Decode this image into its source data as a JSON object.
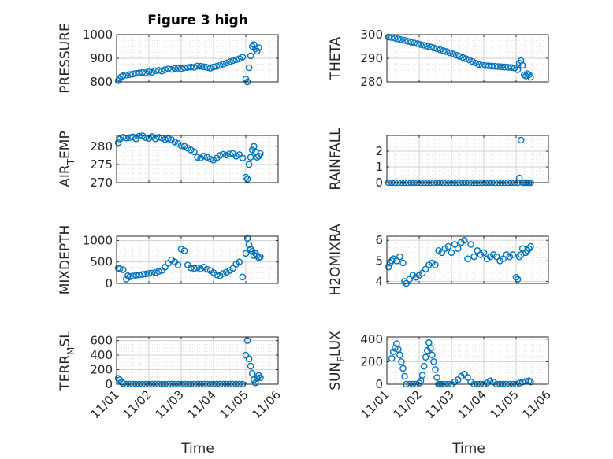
{
  "figure": {
    "title": "Figure 3 high"
  },
  "style": {
    "marker_color": "#0072BD",
    "axis_color": "#262626",
    "grid_color": "#d9d9d9"
  },
  "chart_data": [
    {
      "type": "scatter",
      "ylabel_parts": [
        "PRESSURE"
      ],
      "ylim": [
        800,
        1000
      ],
      "yticks": [
        800,
        900,
        1000
      ],
      "xlim": [
        0,
        5
      ],
      "show_xticklabels": false,
      "x": [
        0.05,
        0.1,
        0.15,
        0.2,
        0.3,
        0.4,
        0.5,
        0.6,
        0.7,
        0.8,
        0.9,
        1.0,
        1.1,
        1.2,
        1.3,
        1.4,
        1.5,
        1.6,
        1.7,
        1.8,
        1.9,
        2.0,
        2.1,
        2.2,
        2.3,
        2.4,
        2.5,
        2.6,
        2.7,
        2.8,
        2.9,
        3.0,
        3.1,
        3.2,
        3.3,
        3.4,
        3.5,
        3.6,
        3.7,
        3.8,
        3.9,
        4.0,
        4.05,
        4.1,
        4.15,
        4.2,
        4.25,
        4.3,
        4.35,
        4.4
      ],
      "y": [
        805,
        815,
        822,
        826,
        829,
        831,
        833,
        836,
        838,
        840,
        839,
        843,
        841,
        847,
        849,
        846,
        852,
        855,
        853,
        857,
        858,
        856,
        860,
        861,
        863,
        862,
        867,
        866,
        864,
        861,
        858,
        863,
        866,
        870,
        875,
        880,
        885,
        890,
        894,
        898,
        905,
        812,
        800,
        860,
        910,
        950,
        958,
        940,
        930,
        945
      ]
    },
    {
      "type": "scatter",
      "ylabel_parts": [
        "THETA"
      ],
      "ylim": [
        280,
        300
      ],
      "yticks": [
        280,
        290,
        300
      ],
      "xlim": [
        0,
        5
      ],
      "show_xticklabels": false,
      "x": [
        0.05,
        0.15,
        0.25,
        0.35,
        0.45,
        0.55,
        0.65,
        0.75,
        0.85,
        0.95,
        1.05,
        1.15,
        1.25,
        1.35,
        1.45,
        1.55,
        1.65,
        1.75,
        1.85,
        1.95,
        2.05,
        2.15,
        2.25,
        2.35,
        2.45,
        2.55,
        2.65,
        2.75,
        2.85,
        2.95,
        3.05,
        3.15,
        3.25,
        3.35,
        3.45,
        3.55,
        3.65,
        3.75,
        3.85,
        3.95,
        4.05,
        4.1,
        4.15,
        4.2,
        4.25,
        4.3,
        4.35,
        4.4,
        4.45
      ],
      "y": [
        299,
        298.8,
        298.5,
        298.2,
        297.9,
        297.6,
        297.2,
        296.8,
        296.5,
        296.2,
        295.8,
        295.5,
        295.1,
        294.8,
        294.4,
        294,
        293.6,
        293.2,
        292.8,
        292.3,
        291.8,
        291.3,
        290.8,
        290.3,
        289.8,
        289.3,
        288.6,
        288,
        287.4,
        287,
        286.9,
        286.8,
        286.7,
        286.6,
        286.5,
        286.4,
        286.3,
        286.2,
        286.1,
        285.9,
        285.2,
        288,
        289,
        287,
        283,
        282.5,
        283.5,
        283,
        282
      ]
    },
    {
      "type": "scatter",
      "ylabel_parts": [
        "AIR",
        "T",
        "EMP"
      ],
      "ylim": [
        270,
        283
      ],
      "yticks": [
        270,
        275,
        280
      ],
      "xlim": [
        0,
        5
      ],
      "show_xticklabels": false,
      "x": [
        0.05,
        0.1,
        0.2,
        0.3,
        0.4,
        0.5,
        0.6,
        0.7,
        0.8,
        0.9,
        1.0,
        1.1,
        1.2,
        1.3,
        1.4,
        1.5,
        1.6,
        1.7,
        1.8,
        1.9,
        2.0,
        2.1,
        2.2,
        2.3,
        2.4,
        2.5,
        2.6,
        2.7,
        2.8,
        2.9,
        3.0,
        3.1,
        3.2,
        3.3,
        3.4,
        3.5,
        3.6,
        3.7,
        3.8,
        3.9,
        4.0,
        4.05,
        4.1,
        4.15,
        4.2,
        4.25,
        4.3,
        4.35,
        4.4,
        4.45
      ],
      "y": [
        281,
        282,
        282.5,
        282.3,
        282.4,
        282.6,
        282.1,
        282.8,
        282.9,
        282.4,
        282.2,
        282.7,
        282.1,
        282.5,
        282.3,
        281.9,
        282.1,
        281.8,
        281.2,
        280.8,
        280.2,
        280,
        279.5,
        279,
        278.5,
        277,
        276.8,
        277.3,
        277,
        276.5,
        276.2,
        276.8,
        277.5,
        277.8,
        277.6,
        277.9,
        278,
        277.3,
        277.7,
        276.8,
        271.5,
        271,
        275,
        277,
        279,
        280,
        278.5,
        277,
        277.3,
        278
      ]
    },
    {
      "type": "scatter",
      "ylabel_parts": [
        "RAINFALL"
      ],
      "ylim": [
        0,
        3
      ],
      "yticks": [
        0,
        1,
        2
      ],
      "xlim": [
        0,
        5
      ],
      "show_xticklabels": false,
      "x": [
        0.05,
        0.15,
        0.25,
        0.35,
        0.45,
        0.55,
        0.65,
        0.75,
        0.85,
        0.95,
        1.05,
        1.15,
        1.25,
        1.35,
        1.45,
        1.55,
        1.65,
        1.75,
        1.85,
        1.95,
        2.05,
        2.15,
        2.25,
        2.35,
        2.45,
        2.55,
        2.65,
        2.75,
        2.85,
        2.95,
        3.05,
        3.15,
        3.25,
        3.35,
        3.45,
        3.55,
        3.65,
        3.75,
        3.85,
        3.95,
        4.05,
        4.1,
        4.15,
        4.2,
        4.25,
        4.3,
        4.35,
        4.4,
        4.45
      ],
      "y": [
        0,
        0,
        0,
        0,
        0,
        0,
        0,
        0,
        0,
        0,
        0,
        0,
        0,
        0,
        0,
        0,
        0,
        0,
        0,
        0,
        0,
        0,
        0,
        0,
        0,
        0,
        0,
        0,
        0,
        0,
        0,
        0,
        0,
        0,
        0,
        0,
        0,
        0,
        0,
        0,
        0,
        0.3,
        2.7,
        0,
        0,
        0,
        0,
        0,
        0
      ]
    },
    {
      "type": "scatter",
      "ylabel_parts": [
        "MIXDEPTH"
      ],
      "ylim": [
        0,
        1100
      ],
      "yticks": [
        0,
        500,
        1000
      ],
      "xlim": [
        0,
        5
      ],
      "show_xticklabels": false,
      "x": [
        0.05,
        0.1,
        0.2,
        0.3,
        0.35,
        0.4,
        0.5,
        0.6,
        0.7,
        0.8,
        0.9,
        1.0,
        1.1,
        1.2,
        1.3,
        1.4,
        1.5,
        1.6,
        1.7,
        1.8,
        1.9,
        2.0,
        2.1,
        2.2,
        2.3,
        2.4,
        2.5,
        2.6,
        2.7,
        2.8,
        2.9,
        3.0,
        3.1,
        3.2,
        3.3,
        3.4,
        3.5,
        3.6,
        3.7,
        3.8,
        3.9,
        4.0,
        4.05,
        4.1,
        4.15,
        4.2,
        4.25,
        4.3,
        4.35,
        4.4,
        4.45
      ],
      "y": [
        360,
        340,
        320,
        100,
        180,
        150,
        170,
        190,
        200,
        210,
        220,
        230,
        240,
        250,
        280,
        300,
        380,
        470,
        550,
        500,
        430,
        800,
        760,
        430,
        360,
        350,
        360,
        340,
        380,
        330,
        300,
        250,
        200,
        180,
        230,
        260,
        300,
        350,
        450,
        500,
        150,
        700,
        1050,
        900,
        800,
        750,
        650,
        700,
        650,
        600,
        620
      ]
    },
    {
      "type": "scatter",
      "ylabel_parts": [
        "H2OMIXRA"
      ],
      "ylim": [
        3.9,
        6.2
      ],
      "yticks": [
        4,
        5,
        6
      ],
      "xlim": [
        0,
        5
      ],
      "show_xticklabels": false,
      "x": [
        0.05,
        0.1,
        0.15,
        0.2,
        0.3,
        0.4,
        0.5,
        0.55,
        0.6,
        0.7,
        0.8,
        0.9,
        1.0,
        1.1,
        1.2,
        1.3,
        1.4,
        1.5,
        1.6,
        1.7,
        1.8,
        1.9,
        2.0,
        2.1,
        2.2,
        2.3,
        2.4,
        2.5,
        2.6,
        2.7,
        2.8,
        2.9,
        3.0,
        3.1,
        3.2,
        3.3,
        3.4,
        3.5,
        3.6,
        3.7,
        3.8,
        3.9,
        4.0,
        4.05,
        4.1,
        4.15,
        4.2,
        4.3,
        4.35,
        4.4,
        4.45
      ],
      "y": [
        4.7,
        4.9,
        5.0,
        5.1,
        5.0,
        5.2,
        4.9,
        4.0,
        3.9,
        4.1,
        4.3,
        4.2,
        4.3,
        4.4,
        4.6,
        4.8,
        4.9,
        4.8,
        5.5,
        5.4,
        5.6,
        5.7,
        5.4,
        5.8,
        5.6,
        5.9,
        6.0,
        5.1,
        5.8,
        5.2,
        5.5,
        5.3,
        5.4,
        5.1,
        5.2,
        5.3,
        5.2,
        5.0,
        5.1,
        5.3,
        5.2,
        5.3,
        4.2,
        4.1,
        5.2,
        5.3,
        5.6,
        5.4,
        5.5,
        5.6,
        5.7
      ]
    },
    {
      "type": "scatter",
      "ylabel_parts": [
        "TERR",
        "M",
        "SL"
      ],
      "ylim": [
        0,
        650
      ],
      "yticks": [
        0,
        200,
        400,
        600
      ],
      "xlim": [
        0,
        5
      ],
      "show_xticklabels": true,
      "x": [
        0.05,
        0.1,
        0.15,
        0.2,
        0.3,
        0.4,
        0.5,
        0.6,
        0.7,
        0.8,
        0.9,
        1.0,
        1.1,
        1.2,
        1.3,
        1.4,
        1.5,
        1.6,
        1.7,
        1.8,
        1.9,
        2.0,
        2.1,
        2.2,
        2.3,
        2.4,
        2.5,
        2.6,
        2.7,
        2.8,
        2.9,
        3.0,
        3.1,
        3.2,
        3.3,
        3.4,
        3.5,
        3.6,
        3.7,
        3.8,
        3.9,
        4.0,
        4.05,
        4.1,
        4.15,
        4.2,
        4.25,
        4.3,
        4.35,
        4.4,
        4.45
      ],
      "y": [
        80,
        60,
        30,
        10,
        0,
        0,
        0,
        0,
        0,
        0,
        0,
        0,
        0,
        0,
        0,
        0,
        0,
        0,
        0,
        0,
        0,
        0,
        0,
        0,
        0,
        0,
        0,
        0,
        0,
        0,
        0,
        0,
        0,
        0,
        0,
        0,
        0,
        0,
        0,
        0,
        0,
        400,
        600,
        350,
        250,
        150,
        60,
        20,
        80,
        120,
        90
      ]
    },
    {
      "type": "scatter",
      "ylabel_parts": [
        "SUN",
        "F",
        "LUX"
      ],
      "ylim": [
        0,
        420
      ],
      "yticks": [
        0,
        200,
        400
      ],
      "xlim": [
        0,
        5
      ],
      "show_xticklabels": true,
      "x": [
        0.15,
        0.2,
        0.25,
        0.3,
        0.35,
        0.4,
        0.45,
        0.5,
        0.55,
        0.6,
        0.7,
        0.8,
        0.9,
        1.0,
        1.05,
        1.1,
        1.15,
        1.2,
        1.25,
        1.3,
        1.35,
        1.4,
        1.45,
        1.5,
        1.55,
        1.6,
        1.65,
        1.7,
        1.8,
        1.9,
        2.0,
        2.1,
        2.2,
        2.3,
        2.4,
        2.5,
        2.6,
        2.7,
        2.8,
        2.9,
        3.0,
        3.1,
        3.2,
        3.3,
        3.4,
        3.5,
        3.6,
        3.7,
        3.8,
        3.9,
        4.0,
        4.1,
        4.2,
        4.3,
        4.4,
        4.45
      ],
      "y": [
        230,
        290,
        320,
        360,
        310,
        260,
        200,
        140,
        70,
        0,
        0,
        0,
        0,
        10,
        30,
        80,
        160,
        240,
        300,
        370,
        320,
        260,
        200,
        130,
        60,
        0,
        0,
        0,
        0,
        0,
        0,
        20,
        40,
        70,
        90,
        60,
        20,
        0,
        0,
        0,
        0,
        10,
        30,
        20,
        0,
        0,
        0,
        0,
        0,
        0,
        0,
        10,
        20,
        25,
        30,
        20
      ]
    }
  ],
  "x_axis": {
    "tick_labels": [
      "11/01",
      "11/02",
      "11/03",
      "11/04",
      "11/05",
      "11/06"
    ],
    "label": "Time"
  }
}
